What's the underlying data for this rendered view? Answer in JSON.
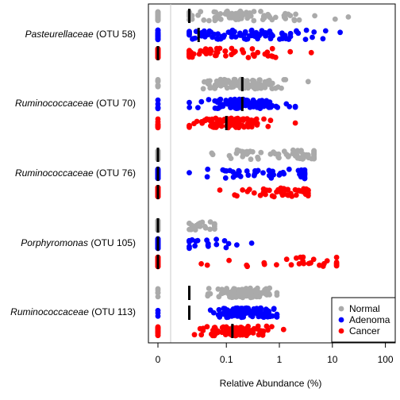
{
  "chart_data": {
    "type": "scatter",
    "orientation": "horizontal strip chart",
    "xlabel": "Relative Abundance (%)",
    "x_scale": "log10 with zero",
    "x_ticks": [
      "0",
      "0.1",
      "1",
      "10",
      "100"
    ],
    "x_tick_values": [
      0,
      0.1,
      1,
      10,
      100
    ],
    "xlim": [
      0,
      100
    ],
    "legend_position": "bottom-right",
    "series": [
      {
        "name": "Normal",
        "color": "#aaaaaa"
      },
      {
        "name": "Adenoma",
        "color": "#0000ff"
      },
      {
        "name": "Cancer",
        "color": "#ff0000"
      }
    ],
    "groups": [
      {
        "taxon": "Pasteurellaceae",
        "otu": "(OTU 58)",
        "medians": {
          "Normal": 0.02,
          "Adenoma": 0.03,
          "Cancer": 0
        },
        "zero_fraction": {
          "Normal": 0.3,
          "Adenoma": 0.22,
          "Cancer": 0.45
        },
        "range": {
          "Normal": [
            0.02,
            20
          ],
          "Adenoma": [
            0.02,
            14
          ],
          "Cancer": [
            0.02,
            4
          ]
        },
        "mean_log": {
          "Normal": -0.6,
          "Adenoma": -0.7,
          "Cancer": -1.0
        },
        "sd_log": {
          "Normal": 0.7,
          "Adenoma": 0.7,
          "Cancer": 0.6
        }
      },
      {
        "taxon": "Ruminococcaceae",
        "otu": "(OTU 70)",
        "medians": {
          "Normal": 0.2,
          "Adenoma": 0.2,
          "Cancer": 0.1
        },
        "zero_fraction": {
          "Normal": 0.04,
          "Adenoma": 0.05,
          "Cancer": 0.08
        },
        "range": {
          "Normal": [
            0.02,
            3.5
          ],
          "Adenoma": [
            0.02,
            2
          ],
          "Cancer": [
            0.02,
            2
          ]
        },
        "mean_log": {
          "Normal": -0.7,
          "Adenoma": -0.7,
          "Cancer": -1.0
        },
        "sd_log": {
          "Normal": 0.35,
          "Adenoma": 0.35,
          "Cancer": 0.35
        }
      },
      {
        "taxon": "Ruminococcaceae",
        "otu": "(OTU 76)",
        "medians": {
          "Normal": 0,
          "Adenoma": 0,
          "Cancer": 0
        },
        "zero_fraction": {
          "Normal": 0.5,
          "Adenoma": 0.55,
          "Cancer": 0.55
        },
        "range": {
          "Normal": [
            0.02,
            4.5
          ],
          "Adenoma": [
            0.02,
            3
          ],
          "Cancer": [
            0.02,
            3.5
          ]
        },
        "mean_log": {
          "Normal": 0.0,
          "Adenoma": -0.2,
          "Cancer": 0.1
        },
        "sd_log": {
          "Normal": 0.6,
          "Adenoma": 0.6,
          "Cancer": 0.5
        }
      },
      {
        "taxon": "Porphyromonas",
        "otu": "(OTU 105)",
        "medians": {
          "Normal": 0,
          "Adenoma": 0,
          "Cancer": 0
        },
        "zero_fraction": {
          "Normal": 0.8,
          "Adenoma": 0.8,
          "Cancer": 0.7
        },
        "range": {
          "Normal": [
            0.02,
            0.06
          ],
          "Adenoma": [
            0.02,
            0.3
          ],
          "Cancer": [
            0.02,
            12
          ]
        },
        "mean_log": {
          "Normal": -1.5,
          "Adenoma": -1.3,
          "Cancer": 0.2
        },
        "sd_log": {
          "Normal": 0.2,
          "Adenoma": 0.4,
          "Cancer": 0.7
        }
      },
      {
        "taxon": "Ruminococcaceae",
        "otu": "(OTU 113)",
        "medians": {
          "Normal": 0.02,
          "Adenoma": 0.02,
          "Cancer": 0.13
        },
        "zero_fraction": {
          "Normal": 0.05,
          "Adenoma": 0.06,
          "Cancer": 0.08
        },
        "range": {
          "Normal": [
            0.02,
            0.9
          ],
          "Adenoma": [
            0.02,
            0.9
          ],
          "Cancer": [
            0.02,
            1.2
          ]
        },
        "mean_log": {
          "Normal": -0.7,
          "Adenoma": -0.7,
          "Cancer": -0.8
        },
        "sd_log": {
          "Normal": 0.3,
          "Adenoma": 0.3,
          "Cancer": 0.3
        }
      }
    ]
  }
}
